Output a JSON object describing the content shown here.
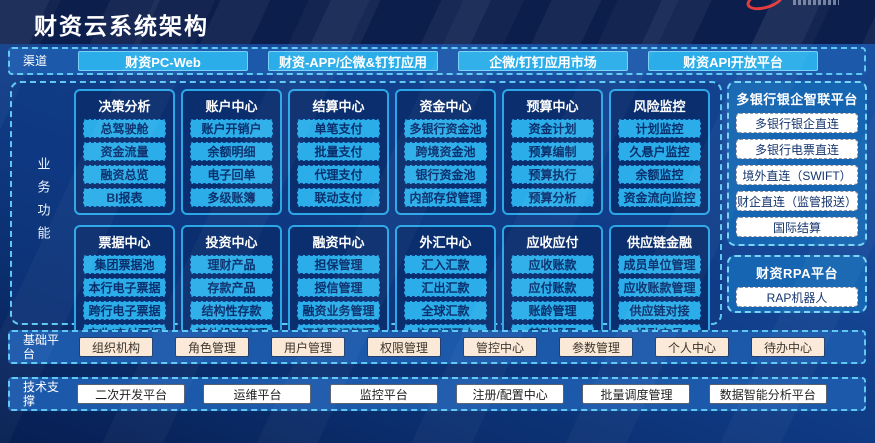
{
  "page_title": "财资云系统架构",
  "channels": {
    "label": "渠道",
    "items": [
      "财资PC-Web",
      "财资-APP/企微&钉钉应用",
      "企微/钉钉应用市场",
      "财资API开放平台"
    ]
  },
  "business": {
    "label": "业务功能",
    "groups": [
      {
        "title": "决策分析",
        "items": [
          "总驾驶舱",
          "资金流量",
          "融资总览",
          "BI报表"
        ]
      },
      {
        "title": "账户中心",
        "items": [
          "账户开销户",
          "余额明细",
          "电子回单",
          "多级账簿"
        ]
      },
      {
        "title": "结算中心",
        "items": [
          "单笔支付",
          "批量支付",
          "代理支付",
          "联动支付"
        ]
      },
      {
        "title": "资金中心",
        "items": [
          "多银行资金池",
          "跨境资金池",
          "银行资金池",
          "内部存贷管理"
        ]
      },
      {
        "title": "预算中心",
        "items": [
          "资金计划",
          "预算编制",
          "预算执行",
          "预算分析"
        ]
      },
      {
        "title": "风险监控",
        "items": [
          "计划监控",
          "久悬户监控",
          "余额监控",
          "资金流向监控"
        ]
      },
      {
        "title": "票据中心",
        "items": [
          "集团票据池",
          "本行电子票据",
          "跨行电子票据",
          "应收/应付票据"
        ]
      },
      {
        "title": "投资中心",
        "items": [
          "理财产品",
          "存款产品",
          "结构性存款",
          "其他投资管理"
        ]
      },
      {
        "title": "融资中心",
        "items": [
          "担保管理",
          "授信管理",
          "融资业务管理",
          "还款登记管理"
        ]
      },
      {
        "title": "外汇中心",
        "items": [
          "汇入汇款",
          "汇出汇款",
          "全球汇款",
          "信用证开立"
        ]
      },
      {
        "title": "应收应付",
        "items": [
          "应收账款",
          "应付账款",
          "账龄管理",
          "基础设置"
        ]
      },
      {
        "title": "供应链金融",
        "items": [
          "成员单位管理",
          "应收账款管理",
          "供应链对接",
          "投融交易"
        ]
      }
    ]
  },
  "bank_platform": {
    "title": "多银行银企智联平台",
    "items": [
      "多银行银企直连",
      "多银行电票直连",
      "境外直连（SWIFT）",
      "财企直连（监管报送）",
      "国际结算"
    ]
  },
  "rpa_platform": {
    "title": "财资RPA平台",
    "items": [
      "RAP机器人"
    ]
  },
  "base_platform": {
    "label": "基础平台",
    "items": [
      "组织机构",
      "角色管理",
      "用户管理",
      "权限管理",
      "管控中心",
      "参数管理",
      "个人中心",
      "待办中心"
    ]
  },
  "tech_support": {
    "label": "技术支撑",
    "items": [
      "二次开发平台",
      "运维平台",
      "监控平台",
      "注册/配置中心",
      "批量调度管理",
      "数据智能分析平台"
    ]
  },
  "colors": {
    "accent_cyan": "#2BADE9",
    "dashed_border": "#5EC8F1",
    "group_navy": "#0A2E6E",
    "side_panel_blue": "#1565B2",
    "row_blue": "#1C59AB",
    "cream_chip": "#FBE9D8",
    "logo_red": "#E23C3C",
    "chip_text_navy": "#0A2F6D"
  }
}
